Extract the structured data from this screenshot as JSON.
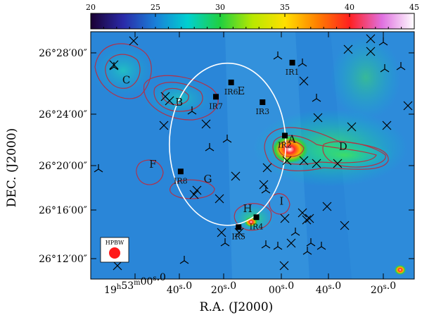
{
  "chart_data": {
    "type": "heatmap",
    "colorbar": {
      "ticks": [
        "20",
        "25",
        "30",
        "35",
        "40",
        "45"
      ],
      "range": [
        20,
        45
      ],
      "colors": [
        "#1a0033",
        "#2a2aa8",
        "#1a7fd8",
        "#00d0d0",
        "#20d040",
        "#b8e800",
        "#ffe000",
        "#ff8000",
        "#ff2020",
        "#e070e0",
        "#ffffff"
      ]
    },
    "xlabel": "R.A. (J2000)",
    "ylabel": "DEC. (J2000)",
    "x_ticks": [
      {
        "h": "19",
        "hsup": "h",
        "m": "53",
        "msup": "m",
        "s": "00",
        "ssup": "s",
        "frac": ".0"
      },
      {
        "s": "40",
        "ssup": "s",
        "frac": ".0"
      },
      {
        "s": "20",
        "ssup": "s",
        "frac": ".0"
      },
      {
        "s": "00",
        "ssup": "s",
        "frac": ".0"
      },
      {
        "s": "40",
        "ssup": "s",
        "frac": ".0"
      },
      {
        "s": "20",
        "ssup": "s",
        "frac": ".0"
      }
    ],
    "y_ticks": [
      "26°28′00″",
      "26°24′00″",
      "26°20′00″",
      "26°16′00″",
      "26°12′00″"
    ],
    "sources": [
      {
        "label": "A",
        "x": 0.622,
        "y": 0.435
      },
      {
        "label": "B",
        "x": 0.273,
        "y": 0.285
      },
      {
        "label": "C",
        "x": 0.11,
        "y": 0.195
      },
      {
        "label": "D",
        "x": 0.78,
        "y": 0.465
      },
      {
        "label": "E",
        "x": 0.465,
        "y": 0.24
      },
      {
        "label": "F",
        "x": 0.192,
        "y": 0.535
      },
      {
        "label": "G",
        "x": 0.362,
        "y": 0.595
      },
      {
        "label": "H",
        "x": 0.485,
        "y": 0.715
      },
      {
        "label": "I",
        "x": 0.59,
        "y": 0.685
      }
    ],
    "ir_sources": [
      {
        "label": "IR1",
        "x": 0.623,
        "y": 0.125
      },
      {
        "label": "IR2",
        "x": 0.6,
        "y": 0.42
      },
      {
        "label": "IR3",
        "x": 0.531,
        "y": 0.285
      },
      {
        "label": "IR4",
        "x": 0.512,
        "y": 0.75
      },
      {
        "label": "IR5",
        "x": 0.457,
        "y": 0.79
      },
      {
        "label": "IR6",
        "x": 0.434,
        "y": 0.205
      },
      {
        "label": "IR7",
        "x": 0.387,
        "y": 0.263
      },
      {
        "label": "IR8",
        "x": 0.278,
        "y": 0.565
      }
    ],
    "hpbw_label": "HPBW",
    "circle": {
      "cx": 0.423,
      "cy": 0.455,
      "rx": 0.29,
      "ry": 0.345
    }
  }
}
